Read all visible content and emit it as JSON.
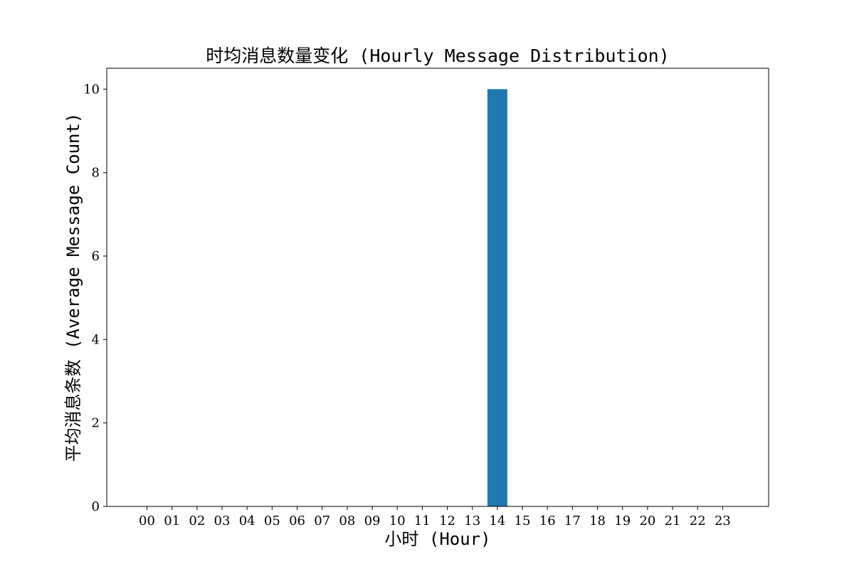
{
  "chart_data": {
    "type": "bar",
    "title": "时均消息数量变化 (Hourly Message Distribution)",
    "xlabel": "小时 (Hour)",
    "ylabel": "平均消息条数 (Average Message Count)",
    "categories": [
      "00",
      "01",
      "02",
      "03",
      "04",
      "05",
      "06",
      "07",
      "08",
      "09",
      "10",
      "11",
      "12",
      "13",
      "14",
      "15",
      "16",
      "17",
      "18",
      "19",
      "20",
      "21",
      "22",
      "23"
    ],
    "values": [
      0,
      0,
      0,
      0,
      0,
      0,
      0,
      0,
      0,
      0,
      0,
      0,
      0,
      0,
      10,
      0,
      0,
      0,
      0,
      0,
      0,
      0,
      0,
      0
    ],
    "ylim": [
      0,
      10.5
    ],
    "yticks": [
      0,
      2,
      4,
      6,
      8,
      10
    ],
    "bar_color": "#1f77b4",
    "grid": false,
    "legend": "none"
  }
}
